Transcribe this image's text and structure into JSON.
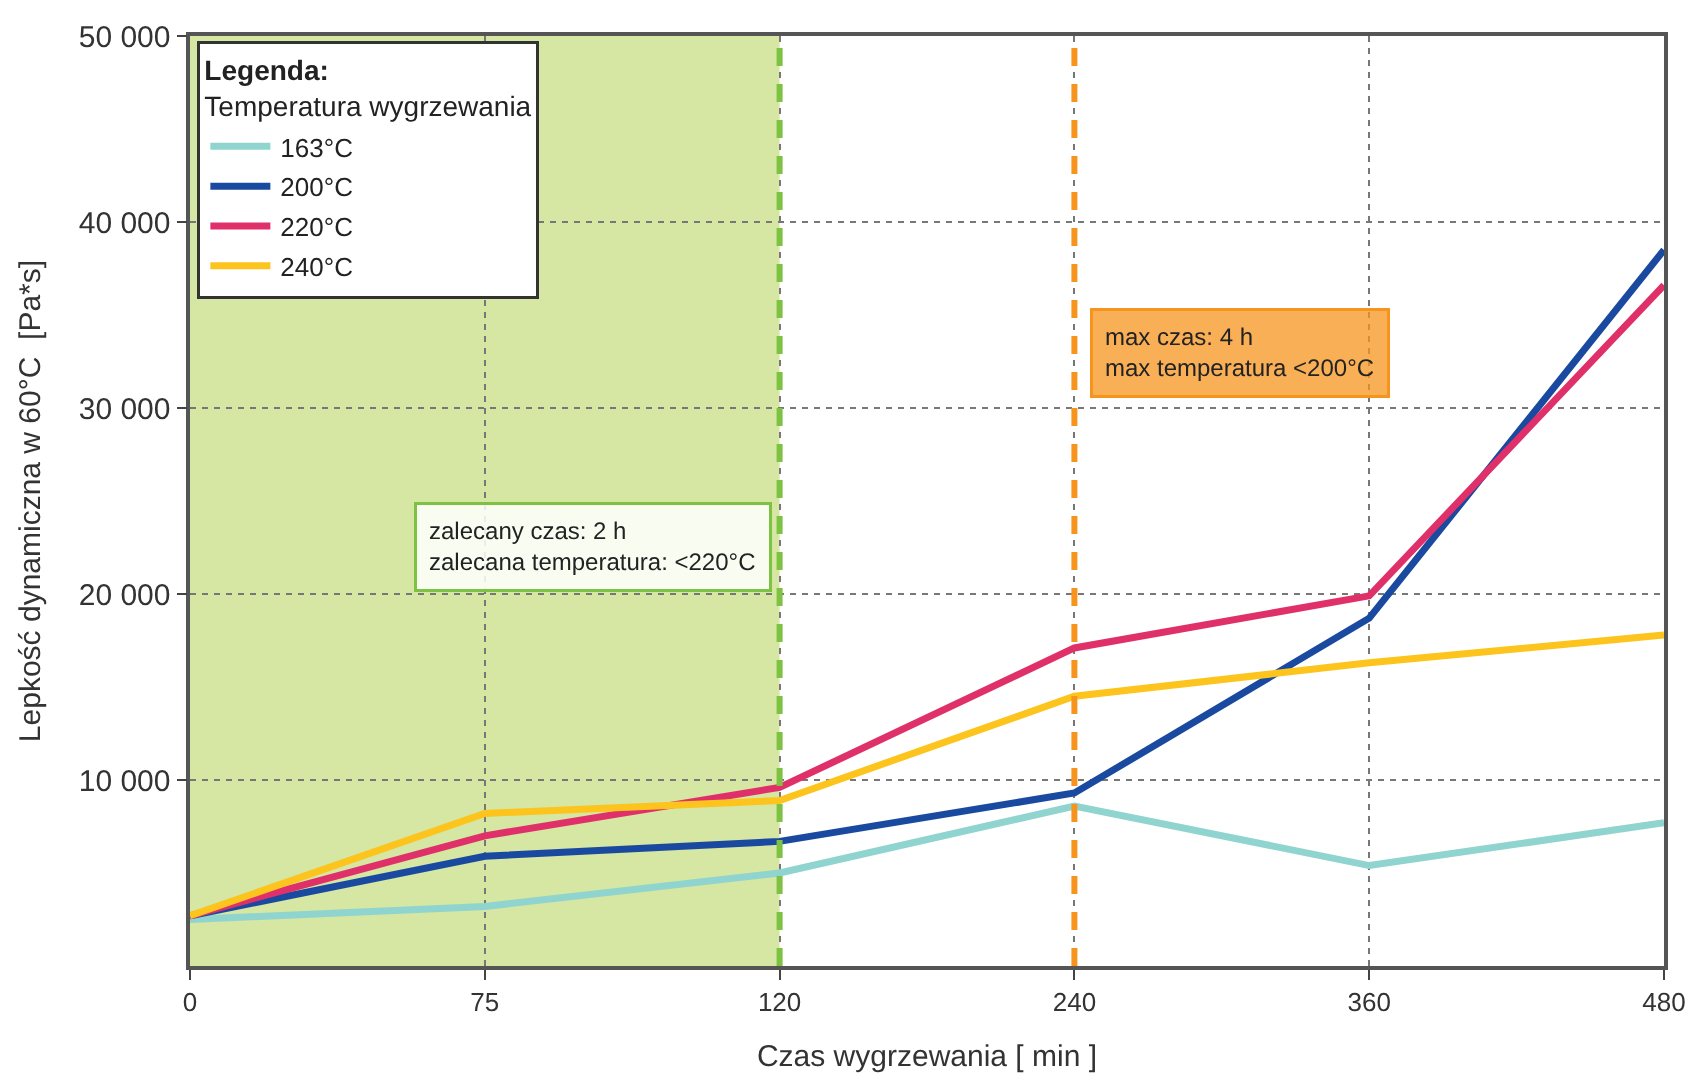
{
  "chart_data": {
    "type": "line",
    "xlabel": "Czas wygrzewania [ min ]",
    "ylabel": "Lepkość dynamiczna w 60°C  [Pa*s]",
    "legend_title": "Legenda:\nTemperatura wygrzewania",
    "categories": [
      "0",
      "75",
      "120",
      "240",
      "360",
      "480"
    ],
    "series": [
      {
        "name": "163°C",
        "color": "#8fd4cf",
        "values": [
          2500,
          3200,
          5000,
          8600,
          5400,
          7700
        ]
      },
      {
        "name": "200°C",
        "color": "#1a4aa0",
        "values": [
          2700,
          5900,
          6700,
          9300,
          18700,
          38500
        ]
      },
      {
        "name": "220°C",
        "color": "#e0306a",
        "values": [
          2700,
          7000,
          9600,
          17100,
          19900,
          36600
        ]
      },
      {
        "name": "240°C",
        "color": "#fcc41c",
        "values": [
          2700,
          8200,
          8900,
          14500,
          16300,
          17800
        ]
      }
    ],
    "ylim": [
      0,
      50000
    ],
    "yticks": [
      {
        "value": 10000,
        "label": "10 000"
      },
      {
        "value": 20000,
        "label": "20 000"
      },
      {
        "value": 30000,
        "label": "30 000"
      },
      {
        "value": 40000,
        "label": "40 000"
      },
      {
        "value": 50000,
        "label": "50 000"
      }
    ],
    "bands": [
      {
        "axis": "x",
        "from": "0",
        "to": "120",
        "color": "#c5dc7c"
      }
    ],
    "ref_lines": [
      {
        "axis": "x",
        "value": "120",
        "color": "#7dc242",
        "line_style": "dashed"
      },
      {
        "axis": "x",
        "value": "240",
        "color": "#f7941d",
        "line_style": "dashed"
      }
    ],
    "annotations": [
      {
        "text": "zalecany czas: 2 h\nzalecana temperatura: <220°C",
        "x": "120",
        "y": 22500
      },
      {
        "text": "max czas: 4 h\nmax temperatura <200°C",
        "x": "240",
        "y": 33000
      }
    ],
    "grid": true,
    "legend": "top left",
    "line_style": "solid",
    "marker": "none"
  }
}
